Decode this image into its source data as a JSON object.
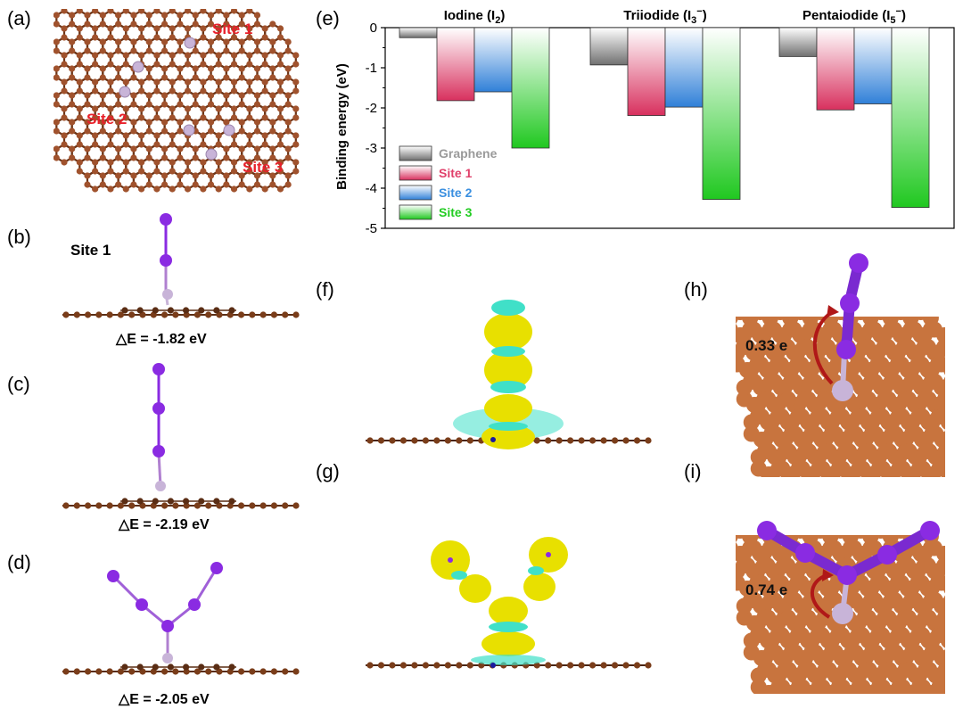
{
  "panels": {
    "a": "(a)",
    "b": "(b)",
    "c": "(c)",
    "d": "(d)",
    "e": "(e)",
    "f": "(f)",
    "g": "(g)",
    "h": "(h)",
    "i": "(i)"
  },
  "panel_a": {
    "site1": "Site 1",
    "site2": "Site 2",
    "site3": "Site 3"
  },
  "panel_b": {
    "title": "Site 1",
    "energy": "△E = -1.82 eV"
  },
  "panel_c": {
    "energy": "△E = -2.19 eV"
  },
  "panel_d": {
    "energy": "△E = -2.05 eV"
  },
  "panel_h": {
    "charge": "0.33 e"
  },
  "panel_i": {
    "charge": "0.74 e"
  },
  "colors": {
    "carbon": "#a0522d",
    "carbon_dark": "#5a2d14",
    "iodine": "#8a2be2",
    "iodine_dark": "#6a1fb0",
    "dopant": "#c8b4d8",
    "isosurface_yellow": "#e8e000",
    "isosurface_cyan": "#40e0c8",
    "arrow": "#b01818"
  },
  "chart_data": {
    "type": "bar",
    "groups": [
      {
        "label": "Iodine (I",
        "sub": "2",
        "sup": "",
        "close": ")"
      },
      {
        "label": "Triiodide (I",
        "sub": "3",
        "sup": "−",
        "close": ")"
      },
      {
        "label": "Pentaiodide (I",
        "sub": "5",
        "sup": "−",
        "close": ")"
      }
    ],
    "series": [
      {
        "name": "Graphene",
        "color": "#808080",
        "values": [
          -0.25,
          -0.93,
          -0.72
        ]
      },
      {
        "name": "Site 1",
        "color": "#e0406a",
        "values": [
          -1.82,
          -2.19,
          -2.05
        ]
      },
      {
        "name": "Site 2",
        "color": "#3a8fe0",
        "values": [
          -1.6,
          -1.98,
          -1.9
        ]
      },
      {
        "name": "Site 3",
        "color": "#22cc22",
        "values": [
          -3.0,
          -4.28,
          -4.48
        ]
      }
    ],
    "ylabel": "Binding energy (eV)",
    "ylim": [
      -5,
      0
    ],
    "yticks": [
      "0",
      "-1",
      "-2",
      "-3",
      "-4",
      "-5"
    ],
    "legend_position": "bottom-left"
  }
}
